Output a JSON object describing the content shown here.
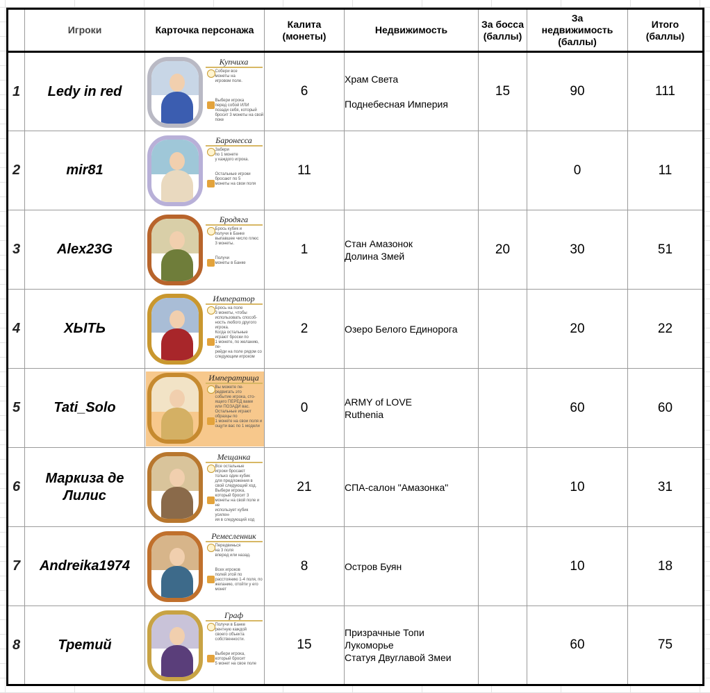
{
  "headers": {
    "rank": "",
    "players": "Игроки",
    "card": "Карточка персонажа",
    "coins": "Калита\n(монеты)",
    "estate": "Недвижимость",
    "boss": "За босса\n(баллы)",
    "estate_points": "За\nнедвижимость\n(баллы)",
    "total": "Итого\n(баллы)"
  },
  "rows": [
    {
      "rank": "1",
      "player": "Ledy in red",
      "card": {
        "title": "Купчиха",
        "text": "Собери все\nмонеты на\nигровом поле.\n\n\n\nВыбери игрока\nперед собой ИЛИ\nпозади себя, который\nбросит 3 монеты на свой\nпоке",
        "sky": "#c8d6e6",
        "robe": "#3b5db0",
        "frame": "#b9b9c4"
      },
      "coins": "6",
      "estate": [
        "Храм Света",
        "",
        "Поднебесная Империя"
      ],
      "boss": "15",
      "estate_points": "90",
      "total": "111"
    },
    {
      "rank": "2",
      "player": "mir81",
      "card": {
        "title": "Баронесса",
        "text": "Забери\nпо 1 монете\nу каждого игрока.\n\n\nОстальные игроки\nбросают по 5\nмонеты на свои поля",
        "sky": "#9fc7d8",
        "robe": "#e9d9bf",
        "frame": "#b8b0d8"
      },
      "coins": "11",
      "estate": [],
      "boss": "",
      "estate_points": "0",
      "total": "11"
    },
    {
      "rank": "3",
      "player": "Alex23G",
      "card": {
        "title": "Бродяга",
        "text": "Брось кубик и\nполучи в Банке\nвыпавшее число плюс\n3 монеты.\n\n\nПолучи\nмонеты в Банке",
        "sky": "#d9cfa8",
        "robe": "#6f7d3a",
        "frame": "#b8642b"
      },
      "coins": "1",
      "estate": [
        "Стан Амазонок",
        "Долина Змей"
      ],
      "boss": "20",
      "estate_points": "30",
      "total": "51"
    },
    {
      "rank": "4",
      "player": "ХЫТЬ",
      "card": {
        "title": "Император",
        "text": "Брось на поле\n3 монеты, чтобы\nиспользовать способ-\nность любого другого\nигрока.\nКогда остальные\nиграют броски по\n1 монете, по желанию, пе-\nрейди на поле рядом со\nследующим игроком",
        "sky": "#a9bdd6",
        "robe": "#a8262a",
        "frame": "#c9972e"
      },
      "coins": "2",
      "estate": [
        "Озеро Белого Единорога"
      ],
      "boss": "",
      "estate_points": "20",
      "total": "22"
    },
    {
      "rank": "5",
      "player": "Tati_Solo",
      "card": {
        "title": "Императрица",
        "text": "Вы можете пе-\nредвигать это\nсобытие игрока, сто-\nящего ПЕРЕД вами\nили ПОЗАДИ вас.\nОстальные играют\nобразцы по\n1 монете на свои поля и\nощути вас по 1 модели",
        "sky": "#f2e3c6",
        "robe": "#d4b064",
        "frame": "#c68a2f"
      },
      "coins": "0",
      "estate": [
        "ARMY of LOVE",
        "Ruthenia"
      ],
      "boss": "",
      "estate_points": "60",
      "total": "60"
    },
    {
      "rank": "6",
      "player": "Маркиза де\nЛилис",
      "card": {
        "title": "Мещанка",
        "text": "Все остальные\nигроки бросают\nтолько один кубик\nдля предложения в\nсвой следующий ход.\nВыбери игрока,\nкоторый бросит 3\nмонеты на свой поле и не\nиспользует кубик усилен-\nия в следующий ход",
        "sky": "#d9c49b",
        "robe": "#8a6a4a",
        "frame": "#b8772e"
      },
      "coins": "21",
      "estate": [
        "СПА-салон \"Амазонка\""
      ],
      "boss": "",
      "estate_points": "10",
      "total": "31"
    },
    {
      "rank": "7",
      "player": "Andreika1974",
      "card": {
        "title": "Ремесленник",
        "text": "Передвинься\nна 3 поля\nвперед или назад.\n\n\nВсех игроков\nполей этой по\nрасстоянию 1-4 поля, по\nжеланию, отойти у его\nмонет",
        "sky": "#d7b58a",
        "robe": "#3d6a8a",
        "frame": "#c0702c"
      },
      "coins": "8",
      "estate": [
        "Остров Буян"
      ],
      "boss": "",
      "estate_points": "10",
      "total": "18"
    },
    {
      "rank": "8",
      "player": "Третий",
      "card": {
        "title": "Граф",
        "text": "Получи в Банке\nрентную каждой\nсвоего объекта\nсобственности.\n\n\nВыбери игрока,\nкоторый бросит\n5 монет на свое поле",
        "sky": "#c9c3d9",
        "robe": "#5a3e7a",
        "frame": "#c8a344"
      },
      "coins": "15",
      "estate": [
        "Призрачные Топи",
        "Лукоморье",
        "Статуя Двуглавой Змеи"
      ],
      "boss": "",
      "estate_points": "60",
      "total": "75"
    }
  ]
}
